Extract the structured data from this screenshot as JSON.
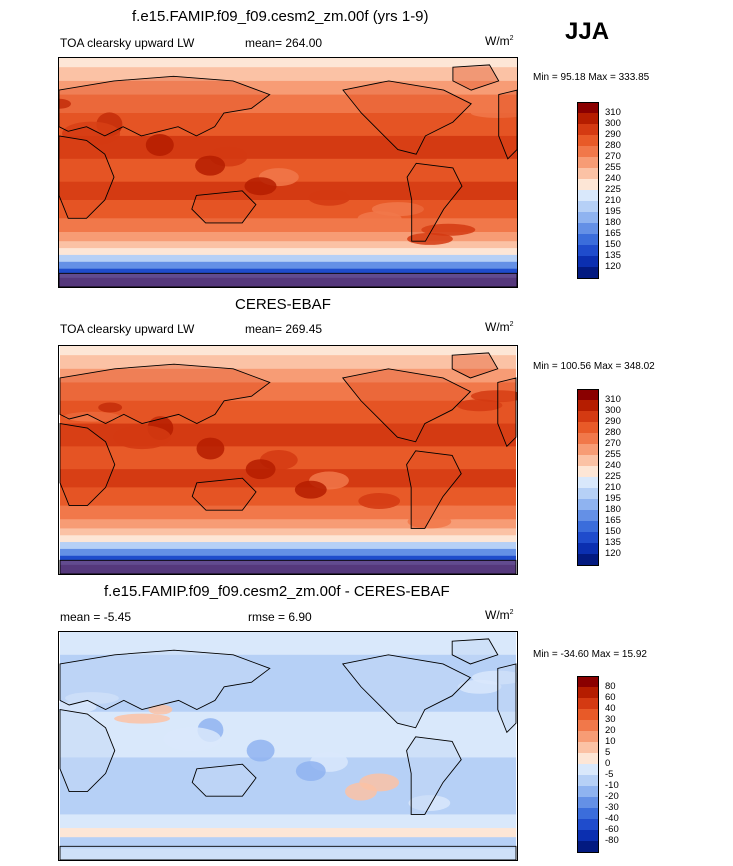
{
  "season": "JJA",
  "panels": [
    {
      "title": "f.e15.FAMIP.f09_f09.cesm2_zm.00f (yrs 1-9)",
      "left_label": "TOA clearsky upward LW",
      "stat_label": "mean= 264.00",
      "stat2_label": "",
      "units": "W/m",
      "units_sup": "2",
      "minmax": "Min =  95.18 Max = 333.85",
      "kind": "abs",
      "colorbar": {
        "labels": [
          "310",
          "300",
          "290",
          "280",
          "270",
          "255",
          "240",
          "225",
          "210",
          "195",
          "180",
          "165",
          "150",
          "135",
          "120"
        ],
        "colors": [
          "#8a0000",
          "#b51d00",
          "#d43a12",
          "#e85a28",
          "#f1784a",
          "#f79c75",
          "#fbc2a5",
          "#fde6d6",
          "#d9e8fb",
          "#b6d0f6",
          "#8fb3f0",
          "#6490e6",
          "#3b6ddb",
          "#1f4ccc",
          "#0b2fb0",
          "#031a80"
        ]
      }
    },
    {
      "title": "CERES-EBAF",
      "left_label": "TOA clearsky upward LW",
      "stat_label": "mean= 269.45",
      "stat2_label": "",
      "units": "W/m",
      "units_sup": "2",
      "minmax": "Min = 100.56 Max = 348.02",
      "kind": "abs",
      "colorbar": {
        "labels": [
          "310",
          "300",
          "290",
          "280",
          "270",
          "255",
          "240",
          "225",
          "210",
          "195",
          "180",
          "165",
          "150",
          "135",
          "120"
        ],
        "colors": [
          "#8a0000",
          "#b51d00",
          "#d43a12",
          "#e85a28",
          "#f1784a",
          "#f79c75",
          "#fbc2a5",
          "#fde6d6",
          "#d9e8fb",
          "#b6d0f6",
          "#8fb3f0",
          "#6490e6",
          "#3b6ddb",
          "#1f4ccc",
          "#0b2fb0",
          "#031a80"
        ]
      }
    },
    {
      "title": "f.e15.FAMIP.f09_f09.cesm2_zm.00f - CERES-EBAF",
      "left_label": "mean =  -5.45",
      "stat_label": "",
      "stat2_label": "rmse =   6.90",
      "units": "W/m",
      "units_sup": "2",
      "minmax": "Min = -34.60 Max =  15.92",
      "kind": "diff",
      "colorbar": {
        "labels": [
          "80",
          "60",
          "40",
          "30",
          "20",
          "10",
          "5",
          "0",
          "-5",
          "-10",
          "-20",
          "-30",
          "-40",
          "-60",
          "-80"
        ],
        "colors": [
          "#8a0000",
          "#b51d00",
          "#d43a12",
          "#e85a28",
          "#f1784a",
          "#f79c75",
          "#fbc2a5",
          "#fde6d6",
          "#d9e8fb",
          "#b6d0f6",
          "#8fb3f0",
          "#6490e6",
          "#3b6ddb",
          "#1f4ccc",
          "#0b2fb0",
          "#031a80"
        ]
      }
    }
  ]
}
